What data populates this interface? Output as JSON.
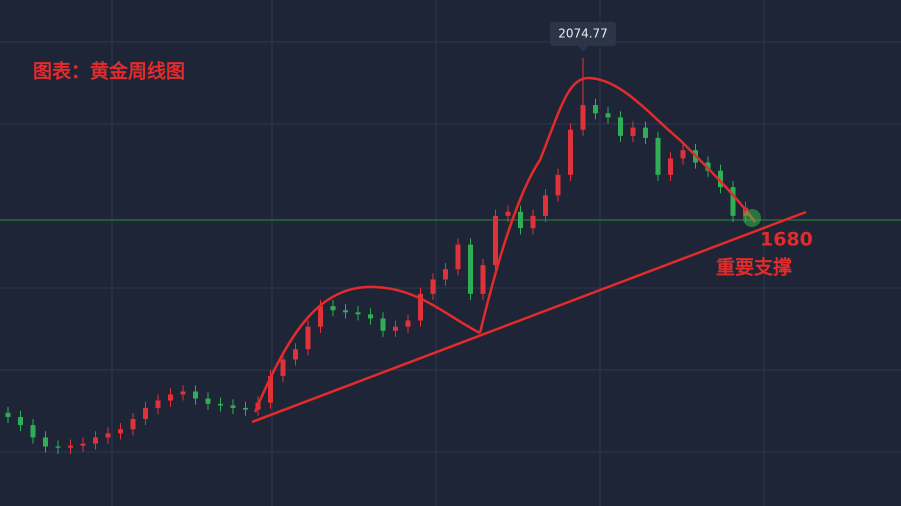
{
  "chart_data": {
    "type": "candlestick",
    "title": "图表：黄金周线图",
    "ohlc": [
      [
        1210,
        1225,
        1185,
        1200
      ],
      [
        1200,
        1215,
        1165,
        1180
      ],
      [
        1180,
        1195,
        1135,
        1150
      ],
      [
        1150,
        1165,
        1113,
        1128
      ],
      [
        1128,
        1143,
        1110,
        1125
      ],
      [
        1125,
        1145,
        1110,
        1130
      ],
      [
        1130,
        1150,
        1115,
        1135
      ],
      [
        1135,
        1165,
        1120,
        1150
      ],
      [
        1150,
        1175,
        1135,
        1160
      ],
      [
        1160,
        1185,
        1145,
        1170
      ],
      [
        1170,
        1210,
        1155,
        1195
      ],
      [
        1195,
        1237,
        1180,
        1222
      ],
      [
        1222,
        1255,
        1207,
        1240
      ],
      [
        1240,
        1270,
        1225,
        1255
      ],
      [
        1255,
        1277,
        1240,
        1262
      ],
      [
        1262,
        1277,
        1230,
        1245
      ],
      [
        1245,
        1260,
        1217,
        1232
      ],
      [
        1232,
        1247,
        1213,
        1228
      ],
      [
        1228,
        1243,
        1207,
        1222
      ],
      [
        1222,
        1237,
        1203,
        1218
      ],
      [
        1218,
        1250,
        1203,
        1235
      ],
      [
        1235,
        1315,
        1220,
        1300
      ],
      [
        1300,
        1355,
        1285,
        1340
      ],
      [
        1340,
        1380,
        1325,
        1365
      ],
      [
        1365,
        1435,
        1350,
        1420
      ],
      [
        1420,
        1485,
        1405,
        1470
      ],
      [
        1470,
        1485,
        1445,
        1460
      ],
      [
        1460,
        1475,
        1440,
        1455
      ],
      [
        1455,
        1470,
        1435,
        1450
      ],
      [
        1450,
        1465,
        1425,
        1440
      ],
      [
        1440,
        1455,
        1395,
        1410
      ],
      [
        1410,
        1435,
        1395,
        1420
      ],
      [
        1420,
        1450,
        1405,
        1435
      ],
      [
        1435,
        1515,
        1420,
        1500
      ],
      [
        1500,
        1550,
        1485,
        1535
      ],
      [
        1535,
        1575,
        1520,
        1560
      ],
      [
        1560,
        1635,
        1545,
        1620
      ],
      [
        1620,
        1635,
        1485,
        1500
      ],
      [
        1500,
        1585,
        1485,
        1570
      ],
      [
        1570,
        1705,
        1555,
        1690
      ],
      [
        1690,
        1715,
        1675,
        1700
      ],
      [
        1700,
        1715,
        1645,
        1660
      ],
      [
        1660,
        1705,
        1645,
        1690
      ],
      [
        1690,
        1755,
        1675,
        1740
      ],
      [
        1740,
        1805,
        1725,
        1790
      ],
      [
        1790,
        1915,
        1775,
        1900
      ],
      [
        1900,
        2074.77,
        1885,
        1960
      ],
      [
        1960,
        1975,
        1925,
        1940
      ],
      [
        1940,
        1955,
        1915,
        1930
      ],
      [
        1930,
        1945,
        1870,
        1885
      ],
      [
        1885,
        1920,
        1870,
        1905
      ],
      [
        1905,
        1920,
        1865,
        1880
      ],
      [
        1880,
        1895,
        1775,
        1790
      ],
      [
        1790,
        1845,
        1775,
        1830
      ],
      [
        1830,
        1865,
        1815,
        1850
      ],
      [
        1850,
        1865,
        1805,
        1820
      ],
      [
        1820,
        1835,
        1785,
        1800
      ],
      [
        1800,
        1815,
        1745,
        1760
      ],
      [
        1760,
        1775,
        1675,
        1690
      ],
      [
        1690,
        1725,
        1675,
        1710
      ]
    ],
    "up_color": "#e0323a",
    "down_color": "#2fae56",
    "ylim": [
      983,
      2216
    ],
    "peak_label": "2074.77",
    "support": 1680,
    "support_label": "重要支撑"
  }
}
